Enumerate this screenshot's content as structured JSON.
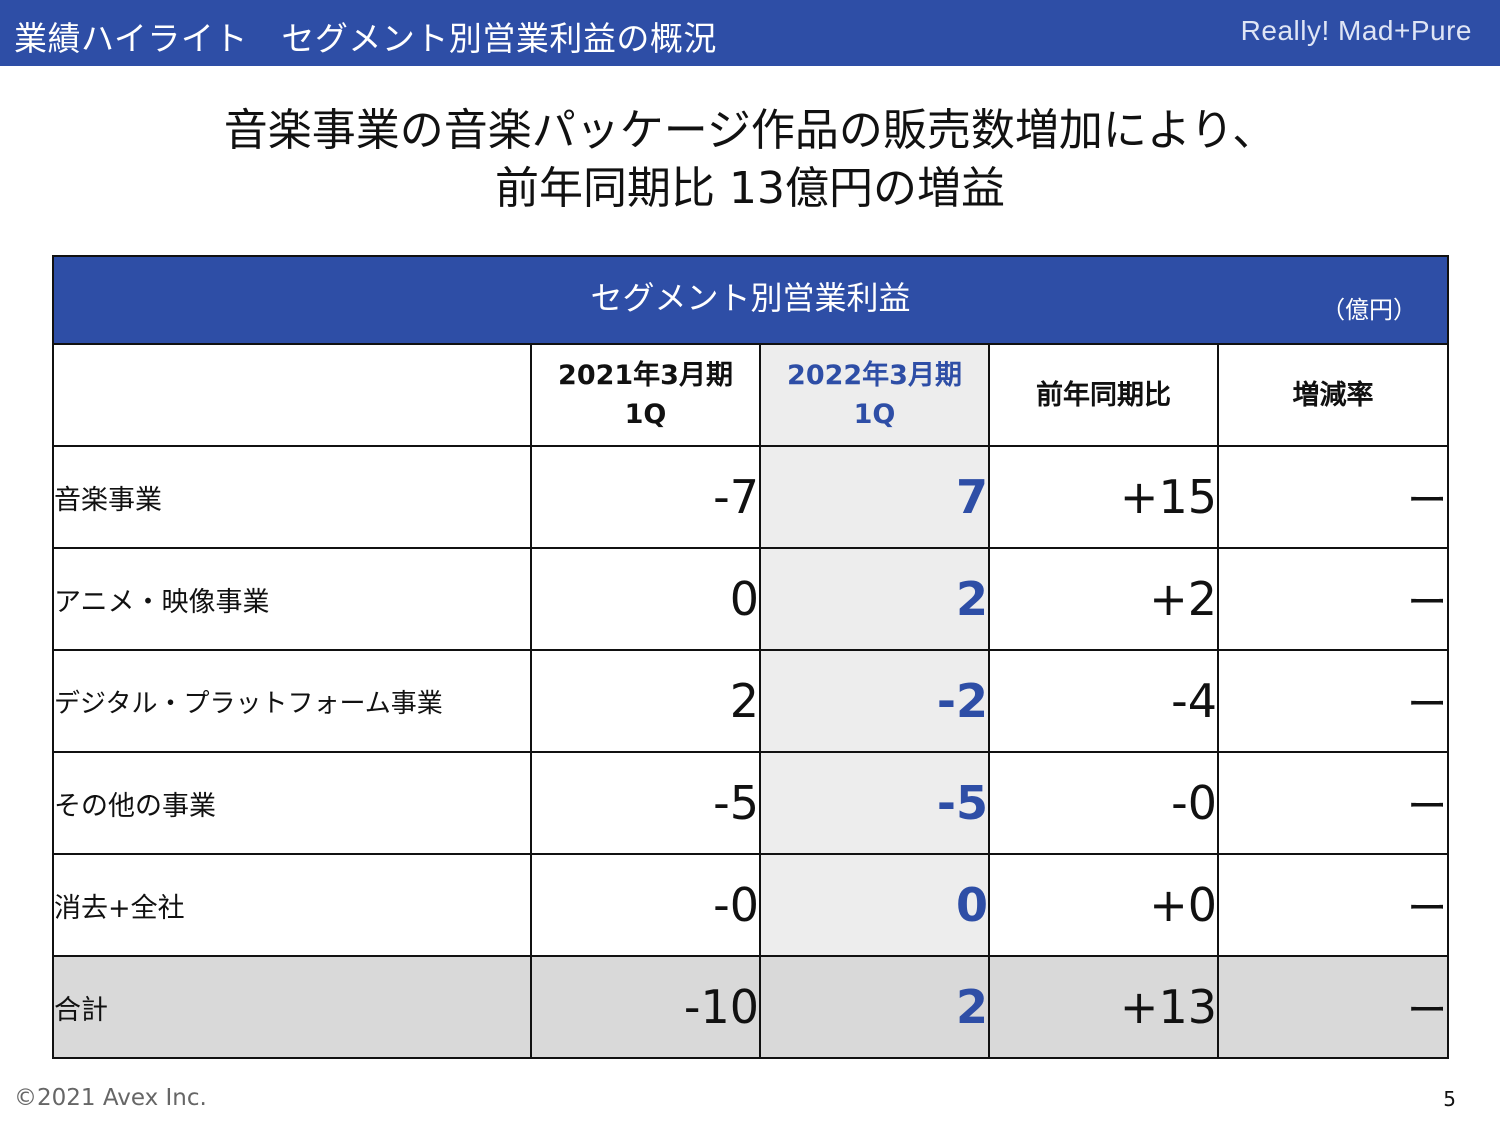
{
  "header": {
    "title": "業績ハイライト　セグメント別営業利益の概況",
    "brand": "Really! Mad+Pure"
  },
  "headline": {
    "line1": "音楽事業の音楽パッケージ作品の販売数増加により、",
    "line2": "前年同期比 13億円の増益"
  },
  "table": {
    "caption": "セグメント別営業利益",
    "unit": "（億円）",
    "columns": [
      {
        "line1": "2021年3月期",
        "line2": "1Q"
      },
      {
        "line1": "2022年3月期",
        "line2": "1Q"
      },
      {
        "line1": "前年同期比",
        "line2": ""
      },
      {
        "line1": "増減率",
        "line2": ""
      }
    ],
    "rows": [
      {
        "label": "音楽事業",
        "fy2021": "-7",
        "fy2022": "7",
        "yoy": "+15",
        "rate": "ー"
      },
      {
        "label": "アニメ・映像事業",
        "fy2021": "0",
        "fy2022": "2",
        "yoy": "+2",
        "rate": "ー"
      },
      {
        "label": "デジタル・プラットフォーム事業",
        "fy2021": "2",
        "fy2022": "-2",
        "yoy": "-4",
        "rate": "ー"
      },
      {
        "label": "その他の事業",
        "fy2021": "-5",
        "fy2022": "-5",
        "yoy": "-0",
        "rate": "ー"
      },
      {
        "label": "消去+全社",
        "fy2021": "-0",
        "fy2022": "0",
        "yoy": "+0",
        "rate": "ー"
      },
      {
        "label": "合計",
        "fy2021": "-10",
        "fy2022": "2",
        "yoy": "+13",
        "rate": "ー"
      }
    ]
  },
  "footer": {
    "copyright": "©2021 Avex Inc.",
    "page": "5"
  },
  "colors": {
    "accent": "#2e4ea6",
    "highlight_bg": "#ededed",
    "total_bg": "#d9d9d9"
  }
}
